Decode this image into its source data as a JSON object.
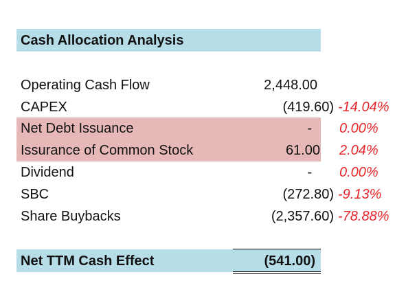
{
  "sheet": {
    "title": "Cash Allocation Analysis",
    "rows": [
      {
        "label": "Operating Cash Flow",
        "value": "2,448.00",
        "pct": ""
      },
      {
        "label": "CAPEX",
        "value": "(419.60)",
        "pct": "-14.04%"
      },
      {
        "label": "Net Debt Issuance",
        "value": "-",
        "pct": "0.00%"
      },
      {
        "label": "Issurance of Common Stock",
        "value": "61.00",
        "pct": "2.04%"
      },
      {
        "label": "Dividend",
        "value": "-",
        "pct": "0.00%"
      },
      {
        "label": "SBC",
        "value": "(272.80)",
        "pct": "-9.13%"
      },
      {
        "label": "Share Buybacks",
        "value": "(2,357.60)",
        "pct": "-78.88%"
      }
    ],
    "total": {
      "label": "Net TTM Cash Effect",
      "value": "(541.00)"
    }
  },
  "colors": {
    "header_fill": "#b7dde8",
    "highlight_fill": "#e6b9b8",
    "negative_pct": "#e3262a"
  }
}
